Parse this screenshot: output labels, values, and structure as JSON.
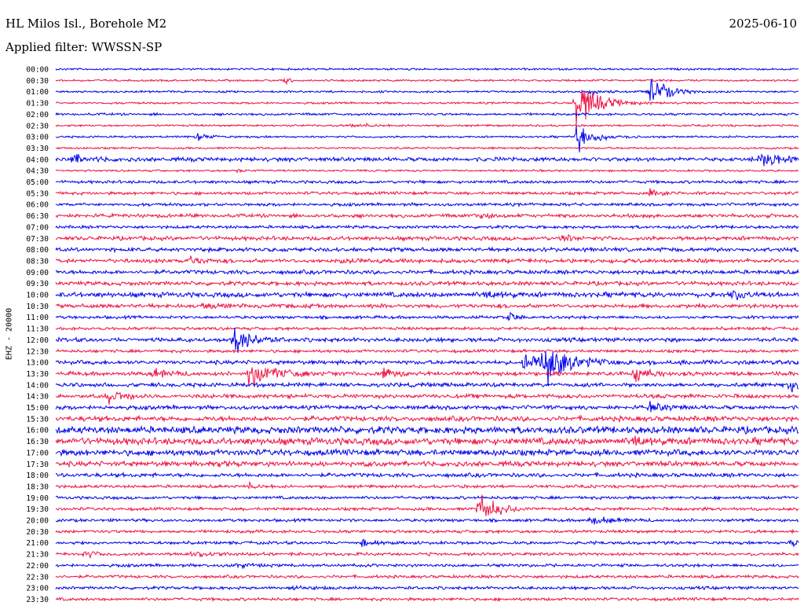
{
  "header": {
    "title": "HL Milos Isl., Borehole M2",
    "date": "2025-06-10",
    "filter": "Applied filter: WWSSN-SP"
  },
  "side_label": "EHZ - 20000",
  "colors": {
    "even": "#0000ee",
    "odd": "#ee1144"
  },
  "chart_data": {
    "type": "line",
    "title": "HL Milos Isl., Borehole M2",
    "xlabel": "",
    "ylabel": "EHZ - 20000",
    "row_labels": [
      "00:00",
      "00:30",
      "01:00",
      "01:30",
      "02:00",
      "02:30",
      "03:00",
      "03:30",
      "04:00",
      "04:30",
      "05:00",
      "05:30",
      "06:00",
      "06:30",
      "07:00",
      "07:30",
      "08:00",
      "08:30",
      "09:00",
      "09:30",
      "10:00",
      "10:30",
      "11:00",
      "11:30",
      "12:00",
      "12:30",
      "13:00",
      "13:30",
      "14:00",
      "14:30",
      "15:00",
      "15:30",
      "16:00",
      "16:30",
      "17:00",
      "17:30",
      "18:00",
      "18:30",
      "19:00",
      "19:30",
      "20:00",
      "20:30",
      "21:00",
      "21:30",
      "22:00",
      "22:30",
      "23:00",
      "23:30"
    ],
    "noise_level": [
      1,
      1,
      1,
      1,
      1.2,
      1,
      1,
      1,
      2,
      1,
      1.5,
      1.5,
      1.5,
      1.8,
      1.5,
      2,
      2,
      2,
      2,
      2,
      2.5,
      2,
      1.5,
      1.5,
      2,
      1.5,
      2,
      2,
      2,
      2,
      2,
      2.5,
      3.5,
      3.5,
      3,
      2.5,
      2,
      1.5,
      1.5,
      1.5,
      1.5,
      1.5,
      1.5,
      1.5,
      1.5,
      1.5,
      1.5,
      1.5
    ],
    "bursts": [
      {
        "row": 1,
        "t": 0.31,
        "amp": 8,
        "dur": 0.01
      },
      {
        "row": 2,
        "t": 0.72,
        "amp": 6,
        "dur": 0.02
      },
      {
        "row": 2,
        "t": 0.8,
        "amp": 30,
        "dur": 0.04
      },
      {
        "row": 3,
        "t": 0.7,
        "amp": 40,
        "dur": 0.05
      },
      {
        "row": 5,
        "t": 0.4,
        "amp": 5,
        "dur": 0.03
      },
      {
        "row": 6,
        "t": 0.19,
        "amp": 6,
        "dur": 0.03
      },
      {
        "row": 6,
        "t": 0.7,
        "amp": 25,
        "dur": 0.04
      },
      {
        "row": 8,
        "t": 0.02,
        "amp": 8,
        "dur": 0.04
      },
      {
        "row": 8,
        "t": 0.95,
        "amp": 16,
        "dur": 0.04
      },
      {
        "row": 9,
        "t": 0.24,
        "amp": 5,
        "dur": 0.01
      },
      {
        "row": 11,
        "t": 0.8,
        "amp": 6,
        "dur": 0.03
      },
      {
        "row": 13,
        "t": 0.57,
        "amp": 5,
        "dur": 0.03
      },
      {
        "row": 15,
        "t": 0.68,
        "amp": 8,
        "dur": 0.02
      },
      {
        "row": 17,
        "t": 0.18,
        "amp": 6,
        "dur": 0.03
      },
      {
        "row": 17,
        "t": 0.38,
        "amp": 6,
        "dur": 0.04
      },
      {
        "row": 20,
        "t": 0.58,
        "amp": 5,
        "dur": 0.04
      },
      {
        "row": 20,
        "t": 0.91,
        "amp": 8,
        "dur": 0.03
      },
      {
        "row": 21,
        "t": 0.2,
        "amp": 5,
        "dur": 0.03
      },
      {
        "row": 22,
        "t": 0.61,
        "amp": 8,
        "dur": 0.02
      },
      {
        "row": 24,
        "t": 0.24,
        "amp": 24,
        "dur": 0.04
      },
      {
        "row": 26,
        "t": 0.63,
        "amp": 16,
        "dur": 0.1
      },
      {
        "row": 26,
        "t": 0.66,
        "amp": 28,
        "dur": 0.04
      },
      {
        "row": 27,
        "t": 0.13,
        "amp": 7,
        "dur": 0.04
      },
      {
        "row": 27,
        "t": 0.26,
        "amp": 20,
        "dur": 0.06
      },
      {
        "row": 27,
        "t": 0.44,
        "amp": 16,
        "dur": 0.02
      },
      {
        "row": 27,
        "t": 0.78,
        "amp": 22,
        "dur": 0.03
      },
      {
        "row": 28,
        "t": 0.99,
        "amp": 14,
        "dur": 0.02
      },
      {
        "row": 29,
        "t": 0.07,
        "amp": 18,
        "dur": 0.03
      },
      {
        "row": 30,
        "t": 0.8,
        "amp": 6,
        "dur": 0.04
      },
      {
        "row": 33,
        "t": 0.78,
        "amp": 6,
        "dur": 0.04
      },
      {
        "row": 35,
        "t": 0.22,
        "amp": 4,
        "dur": 0.02
      },
      {
        "row": 37,
        "t": 0.26,
        "amp": 4,
        "dur": 0.02
      },
      {
        "row": 39,
        "t": 0.57,
        "amp": 28,
        "dur": 0.04
      },
      {
        "row": 39,
        "t": 0.87,
        "amp": 5,
        "dur": 0.01
      },
      {
        "row": 40,
        "t": 0.72,
        "amp": 7,
        "dur": 0.05
      },
      {
        "row": 42,
        "t": 0.41,
        "amp": 6,
        "dur": 0.03
      },
      {
        "row": 42,
        "t": 0.99,
        "amp": 5,
        "dur": 0.02
      },
      {
        "row": 43,
        "t": 0.04,
        "amp": 5,
        "dur": 0.03
      },
      {
        "row": 43,
        "t": 0.18,
        "amp": 7,
        "dur": 0.03
      },
      {
        "row": 44,
        "t": 0.24,
        "amp": 4,
        "dur": 0.03
      },
      {
        "row": 46,
        "t": 0.32,
        "amp": 4,
        "dur": 0.03
      }
    ]
  }
}
